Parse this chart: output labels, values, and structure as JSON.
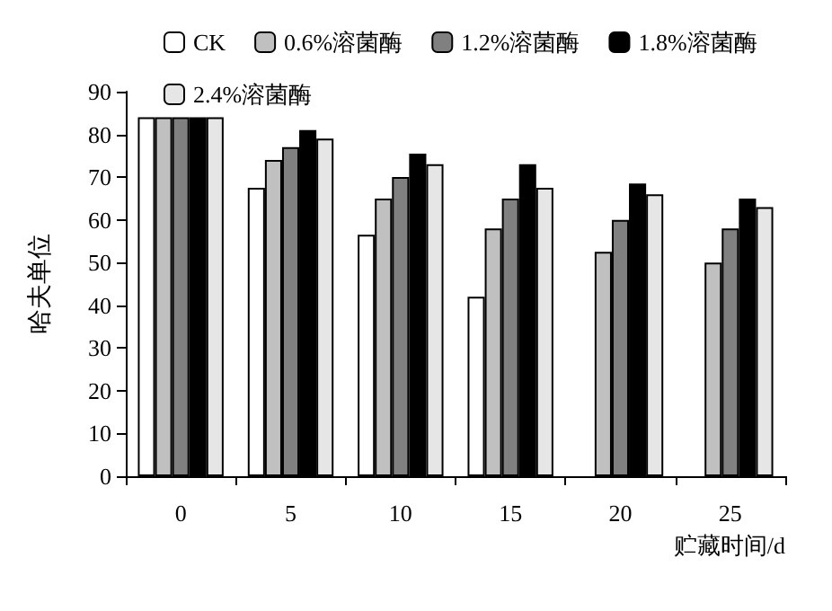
{
  "chart_data": {
    "type": "bar",
    "xlabel": "贮藏时间/d",
    "ylabel": "哈夫单位",
    "categories": [
      "0",
      "5",
      "10",
      "15",
      "20",
      "25"
    ],
    "series": [
      {
        "name": "CK",
        "color": "#ffffff",
        "values": [
          84,
          67.5,
          56.5,
          42,
          null,
          null
        ]
      },
      {
        "name": "0.6%溶菌酶",
        "color": "#c0c0c0",
        "values": [
          84,
          74,
          65,
          58,
          52.5,
          50
        ]
      },
      {
        "name": "1.2%溶菌酶",
        "color": "#808080",
        "values": [
          84,
          77,
          70,
          65,
          60,
          58
        ]
      },
      {
        "name": "1.8%溶菌酶",
        "color": "#000000",
        "values": [
          84,
          81,
          75.5,
          73,
          68.5,
          65
        ]
      },
      {
        "name": "2.4%溶菌酶",
        "color": "#e6e6e6",
        "values": [
          84,
          79,
          73,
          67.5,
          66,
          63
        ]
      }
    ],
    "ylim": [
      0,
      90
    ],
    "yticks": [
      0,
      10,
      20,
      30,
      40,
      50,
      60,
      70,
      80,
      90
    ],
    "grid": false,
    "legend": "top"
  }
}
